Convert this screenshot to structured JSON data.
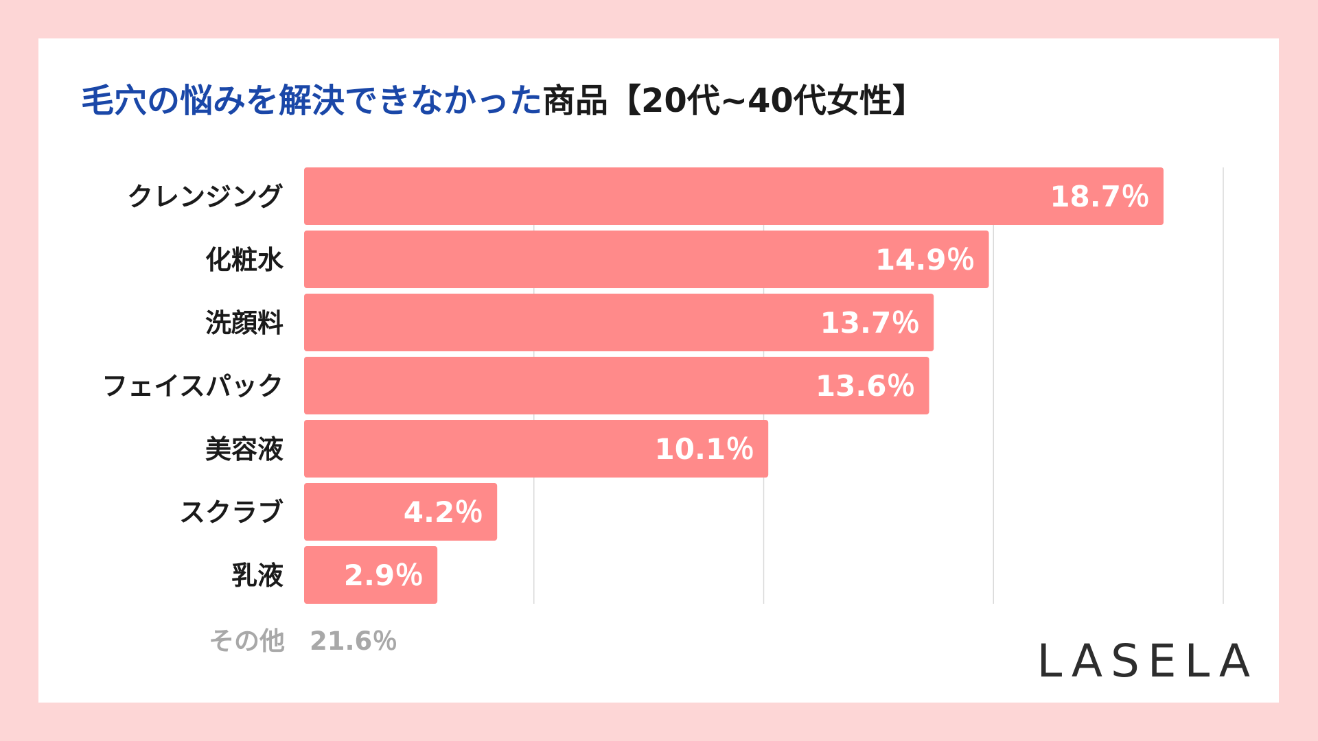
{
  "title": {
    "highlight": "毛穴の悩みを解決できなかった",
    "rest": "商品【20代~40代女性】"
  },
  "footnote": {
    "label": "その他",
    "value": "21.6％"
  },
  "brand": "LASELA",
  "colors": {
    "background": "#fdd6d6",
    "card": "#ffffff",
    "bar": "#ff8a8a",
    "title_highlight": "#1a47a8",
    "gridline": "#d9d9d9"
  },
  "chart_data": {
    "type": "bar",
    "orientation": "horizontal",
    "categories": [
      "クレンジング",
      "化粧水",
      "洗顔料",
      "フェイスパック",
      "美容液",
      "スクラブ",
      "乳液"
    ],
    "values": [
      18.7,
      14.9,
      13.7,
      13.6,
      10.1,
      4.2,
      2.9
    ],
    "value_labels": [
      "18.7％",
      "14.9％",
      "13.7％",
      "13.6％",
      "10.1％",
      "4.2％",
      "2.9％"
    ],
    "xlim": [
      0,
      20
    ],
    "gridlines": [
      5,
      10,
      15,
      20
    ],
    "grid": true,
    "legend": false
  }
}
